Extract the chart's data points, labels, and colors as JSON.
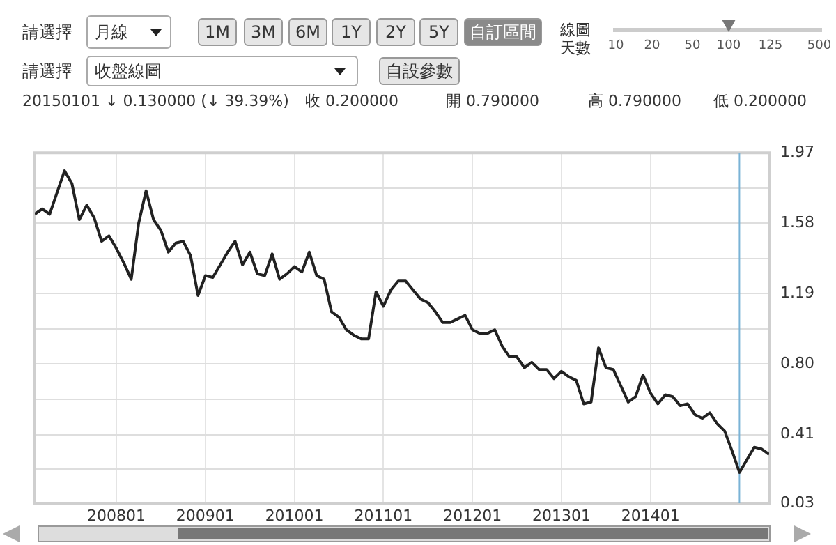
{
  "chart_data": {
    "type": "line",
    "annotations": [
      "請選擇",
      "月線",
      "1M",
      "3M",
      "6M",
      "1Y",
      "2Y",
      "5Y",
      "自訂區間",
      "線圖天數",
      "10",
      "20",
      "50",
      "100",
      "125",
      "500",
      "請選擇",
      "收盤線圖",
      "自設參數",
      "20150101 ↓ 0.130000 (↓ 39.39%)",
      "收 0.200000",
      "開 0.790000",
      "高 0.790000",
      "低 0.200000"
    ],
    "x": [
      "2007-02",
      "2007-03",
      "2007-04",
      "2007-05",
      "2007-06",
      "2007-07",
      "2007-08",
      "2007-09",
      "2007-10",
      "2007-11",
      "2007-12",
      "2008-01",
      "2008-02",
      "2008-03",
      "2008-04",
      "2008-05",
      "2008-06",
      "2008-07",
      "2008-08",
      "2008-09",
      "2008-10",
      "2008-11",
      "2008-12",
      "2009-01",
      "2009-02",
      "2009-03",
      "2009-04",
      "2009-05",
      "2009-06",
      "2009-07",
      "2009-08",
      "2009-09",
      "2009-10",
      "2009-11",
      "2009-12",
      "2010-01",
      "2010-02",
      "2010-03",
      "2010-04",
      "2010-05",
      "2010-06",
      "2010-07",
      "2010-08",
      "2010-09",
      "2010-10",
      "2010-11",
      "2010-12",
      "2011-01",
      "2011-02",
      "2011-03",
      "2011-04",
      "2011-05",
      "2011-06",
      "2011-07",
      "2011-08",
      "2011-09",
      "2011-10",
      "2011-11",
      "2011-12",
      "2012-01",
      "2012-02",
      "2012-03",
      "2012-04",
      "2012-05",
      "2012-06",
      "2012-07",
      "2012-08",
      "2012-09",
      "2012-10",
      "2012-11",
      "2012-12",
      "2013-01",
      "2013-02",
      "2013-03",
      "2013-04",
      "2013-05",
      "2013-06",
      "2013-07",
      "2013-08",
      "2013-09",
      "2013-10",
      "2013-11",
      "2013-12",
      "2014-01",
      "2014-02",
      "2014-03",
      "2014-04",
      "2014-05",
      "2014-06",
      "2014-07",
      "2014-08",
      "2014-09",
      "2014-10",
      "2014-11",
      "2014-12",
      "2015-01",
      "2015-02",
      "2015-03",
      "2015-04",
      "2015-05"
    ],
    "series": [
      {
        "color": "#222222",
        "values": [
          1.63,
          1.66,
          1.63,
          1.75,
          1.87,
          1.8,
          1.6,
          1.68,
          1.61,
          1.48,
          1.51,
          1.44,
          1.36,
          1.27,
          1.58,
          1.76,
          1.6,
          1.54,
          1.42,
          1.47,
          1.48,
          1.4,
          1.18,
          1.29,
          1.28,
          1.35,
          1.42,
          1.48,
          1.35,
          1.42,
          1.3,
          1.29,
          1.41,
          1.27,
          1.3,
          1.34,
          1.31,
          1.42,
          1.29,
          1.27,
          1.09,
          1.06,
          0.99,
          0.96,
          0.94,
          0.94,
          1.2,
          1.12,
          1.21,
          1.26,
          1.26,
          1.21,
          1.16,
          1.14,
          1.09,
          1.03,
          1.03,
          1.05,
          1.07,
          0.99,
          0.97,
          0.97,
          0.99,
          0.9,
          0.84,
          0.84,
          0.78,
          0.81,
          0.77,
          0.77,
          0.72,
          0.76,
          0.73,
          0.71,
          0.58,
          0.59,
          0.89,
          0.78,
          0.77,
          0.68,
          0.59,
          0.62,
          0.74,
          0.64,
          0.58,
          0.63,
          0.62,
          0.57,
          0.58,
          0.52,
          0.5,
          0.53,
          0.47,
          0.43,
          0.32,
          0.2,
          0.27,
          0.34,
          0.33,
          0.3
        ]
      }
    ],
    "xlim": [
      "2007-02",
      "2015-05"
    ],
    "xticks": [
      {
        "value": "2008-01",
        "label": "200801"
      },
      {
        "value": "2009-01",
        "label": "200901"
      },
      {
        "value": "2010-01",
        "label": "201001"
      },
      {
        "value": "2011-01",
        "label": "201101"
      },
      {
        "value": "2012-01",
        "label": "201201"
      },
      {
        "value": "2013-01",
        "label": "201301"
      },
      {
        "value": "2014-01",
        "label": "201401"
      }
    ],
    "ylim": [
      0.03,
      1.97
    ],
    "yticks": [
      0.03,
      {
        "value": 0.22,
        "label": null
      },
      0.41,
      {
        "value": 0.605,
        "label": null
      },
      {
        "value": 0.8,
        "label": "0.80"
      },
      {
        "value": 0.995,
        "label": null
      },
      1.19,
      {
        "value": 1.385,
        "label": null
      },
      1.58,
      {
        "value": 1.775,
        "label": null
      },
      1.97
    ],
    "ref_lines": [
      {
        "axis": "x",
        "value": "2015-01",
        "color": "#7ab3d6"
      }
    ],
    "grid": true,
    "legend": false,
    "marker": "none",
    "line_style": "solid"
  }
}
